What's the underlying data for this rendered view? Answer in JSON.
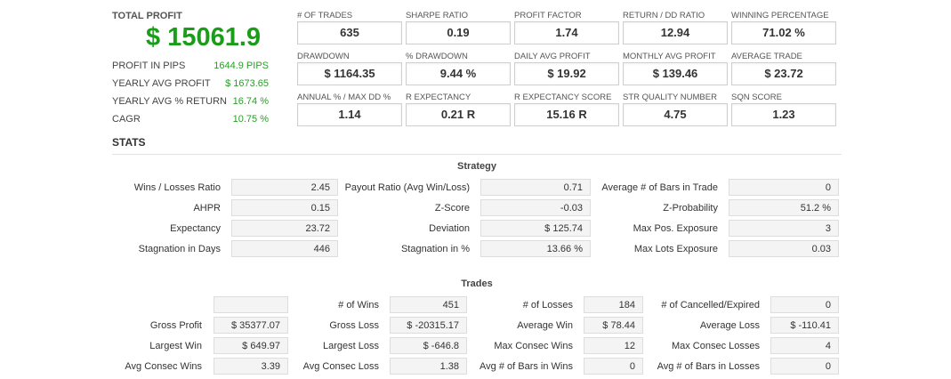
{
  "summary": {
    "total_profit_label": "TOTAL PROFIT",
    "total_profit_value": "$ 15061.9",
    "rows": [
      {
        "label": "PROFIT IN PIPS",
        "value": "1644.9 PIPS"
      },
      {
        "label": "YEARLY AVG PROFIT",
        "value": "$ 1673.65"
      },
      {
        "label": "YEARLY AVG % RETURN",
        "value": "16.74 %"
      },
      {
        "label": "CAGR",
        "value": "10.75 %"
      }
    ]
  },
  "metrics": [
    {
      "label": "# OF TRADES",
      "value": "635"
    },
    {
      "label": "SHARPE RATIO",
      "value": "0.19"
    },
    {
      "label": "PROFIT FACTOR",
      "value": "1.74"
    },
    {
      "label": "RETURN / DD RATIO",
      "value": "12.94"
    },
    {
      "label": "WINNING PERCENTAGE",
      "value": "71.02 %"
    },
    {
      "label": "DRAWDOWN",
      "value": "$ 1164.35"
    },
    {
      "label": "% DRAWDOWN",
      "value": "9.44 %"
    },
    {
      "label": "DAILY AVG PROFIT",
      "value": "$ 19.92"
    },
    {
      "label": "MONTHLY AVG PROFIT",
      "value": "$ 139.46"
    },
    {
      "label": "AVERAGE TRADE",
      "value": "$ 23.72"
    },
    {
      "label": "ANNUAL % / MAX DD %",
      "value": "1.14"
    },
    {
      "label": "R EXPECTANCY",
      "value": "0.21 R"
    },
    {
      "label": "R EXPECTANCY SCORE",
      "value": "15.16 R"
    },
    {
      "label": "STR QUALITY NUMBER",
      "value": "4.75"
    },
    {
      "label": "SQN SCORE",
      "value": "1.23"
    }
  ],
  "stats_title": "STATS",
  "strategy": {
    "title": "Strategy",
    "rows": [
      [
        {
          "label": "Wins / Losses Ratio",
          "value": "2.45"
        },
        {
          "label": "Payout Ratio (Avg Win/Loss)",
          "value": "0.71"
        },
        {
          "label": "Average # of Bars in Trade",
          "value": "0"
        }
      ],
      [
        {
          "label": "AHPR",
          "value": "0.15"
        },
        {
          "label": "Z-Score",
          "value": "-0.03"
        },
        {
          "label": "Z-Probability",
          "value": "51.2 %"
        }
      ],
      [
        {
          "label": "Expectancy",
          "value": "23.72"
        },
        {
          "label": "Deviation",
          "value": "$ 125.74"
        },
        {
          "label": "Max Pos. Exposure",
          "value": "3"
        }
      ],
      [
        {
          "label": "Stagnation in Days",
          "value": "446"
        },
        {
          "label": "Stagnation in %",
          "value": "13.66 %"
        },
        {
          "label": "Max Lots Exposure",
          "value": "0.03"
        }
      ]
    ]
  },
  "trades": {
    "title": "Trades",
    "rows": [
      [
        {
          "label": "",
          "value": ""
        },
        {
          "label": "# of Wins",
          "value": "451"
        },
        {
          "label": "# of Losses",
          "value": "184"
        },
        {
          "label": "# of Cancelled/Expired",
          "value": "0"
        }
      ],
      [
        {
          "label": "Gross Profit",
          "value": "$ 35377.07"
        },
        {
          "label": "Gross Loss",
          "value": "$ -20315.17"
        },
        {
          "label": "Average Win",
          "value": "$ 78.44"
        },
        {
          "label": "Average Loss",
          "value": "$ -110.41"
        }
      ],
      [
        {
          "label": "Largest Win",
          "value": "$ 649.97"
        },
        {
          "label": "Largest Loss",
          "value": "$ -646.8"
        },
        {
          "label": "Max Consec Wins",
          "value": "12"
        },
        {
          "label": "Max Consec Losses",
          "value": "4"
        }
      ],
      [
        {
          "label": "Avg Consec Wins",
          "value": "3.39"
        },
        {
          "label": "Avg Consec Loss",
          "value": "1.38"
        },
        {
          "label": "Avg # of Bars in Wins",
          "value": "0"
        },
        {
          "label": "Avg # of Bars in Losses",
          "value": "0"
        }
      ]
    ]
  }
}
